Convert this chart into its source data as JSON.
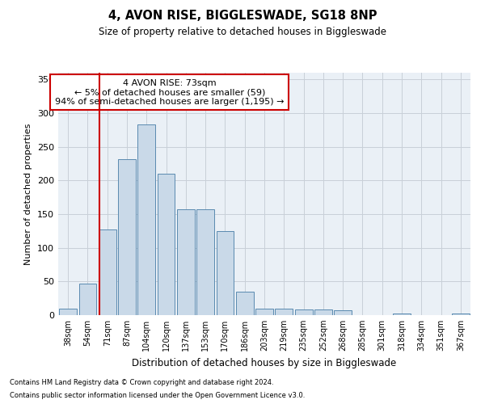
{
  "title": "4, AVON RISE, BIGGLESWADE, SG18 8NP",
  "subtitle": "Size of property relative to detached houses in Biggleswade",
  "xlabel": "Distribution of detached houses by size in Biggleswade",
  "ylabel": "Number of detached properties",
  "footnote1": "Contains HM Land Registry data © Crown copyright and database right 2024.",
  "footnote2": "Contains public sector information licensed under the Open Government Licence v3.0.",
  "bar_labels": [
    "38sqm",
    "54sqm",
    "71sqm",
    "87sqm",
    "104sqm",
    "120sqm",
    "137sqm",
    "153sqm",
    "170sqm",
    "186sqm",
    "203sqm",
    "219sqm",
    "235sqm",
    "252sqm",
    "268sqm",
    "285sqm",
    "301sqm",
    "318sqm",
    "334sqm",
    "351sqm",
    "367sqm"
  ],
  "bar_values": [
    10,
    47,
    127,
    232,
    283,
    210,
    157,
    157,
    125,
    35,
    10,
    10,
    8,
    8,
    7,
    0,
    0,
    3,
    0,
    0,
    2
  ],
  "bar_color": "#c9d9e8",
  "bar_edge_color": "#5a8ab0",
  "grid_color": "#c8d0d8",
  "bg_color": "#eaf0f6",
  "vline_x_index": 2,
  "vline_color": "#cc0000",
  "annotation_text": "4 AVON RISE: 73sqm\n← 5% of detached houses are smaller (59)\n94% of semi-detached houses are larger (1,195) →",
  "annotation_box_color": "#ffffff",
  "annotation_box_edge": "#cc0000",
  "ylim": [
    0,
    360
  ],
  "yticks": [
    0,
    50,
    100,
    150,
    200,
    250,
    300,
    350
  ],
  "fig_width": 6.0,
  "fig_height": 5.0,
  "dpi": 100
}
